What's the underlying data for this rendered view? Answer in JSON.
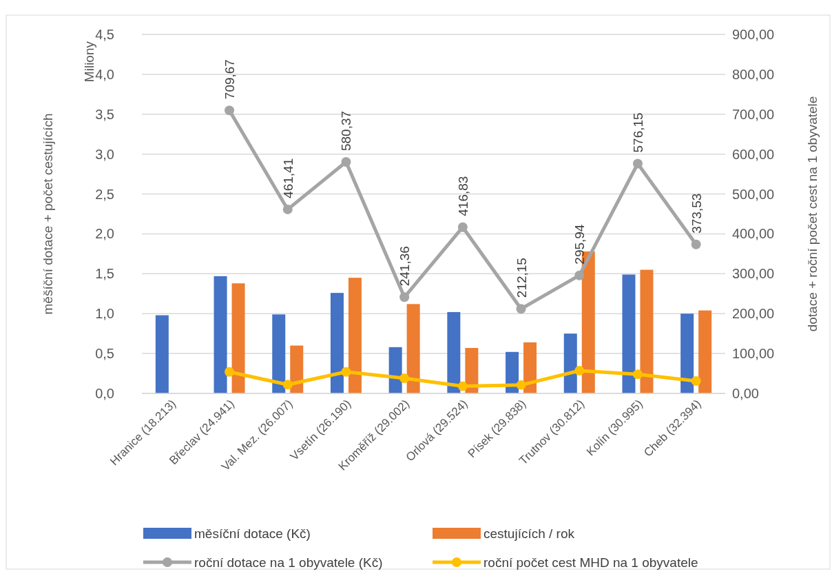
{
  "chart_data": {
    "type": "bar",
    "ylabel": "měšíční dotace + počet cestujících",
    "y2label": "dotace + roční počet cest na 1 obyvatele",
    "annotations": [
      "Miliony"
    ],
    "categories": [
      "Hranice (18.213)",
      "Břeclav (24.941)",
      "Val. Mez. (26.007)",
      "Vsetín (26.190)",
      "Kroměříž (29.002)",
      "Orlová (29.524)",
      "Písek (29.838)",
      "Trutnov (30.812)",
      "Kolín (30.995)",
      "Cheb (32.394)"
    ],
    "ylim": [
      0,
      4.5
    ],
    "yticks": [
      {
        "value": 0,
        "label": "0,0"
      },
      {
        "value": 0.5,
        "label": "0,5"
      },
      {
        "value": 1,
        "label": "1,0"
      },
      {
        "value": 1.5,
        "label": "1,5"
      },
      {
        "value": 2,
        "label": "2,0"
      },
      {
        "value": 2.5,
        "label": "2,5"
      },
      {
        "value": 3,
        "label": "3,0"
      },
      {
        "value": 3.5,
        "label": "3,5"
      },
      {
        "value": 4,
        "label": "4,0"
      },
      {
        "value": 4.5,
        "label": "4,5"
      }
    ],
    "y2lim": [
      0,
      900
    ],
    "y2ticks": [
      {
        "value": 0,
        "label": "0,00"
      },
      {
        "value": 100,
        "label": "100,00"
      },
      {
        "value": 200,
        "label": "200,00"
      },
      {
        "value": 300,
        "label": "300,00"
      },
      {
        "value": 400,
        "label": "400,00"
      },
      {
        "value": 500,
        "label": "500,00"
      },
      {
        "value": 600,
        "label": "600,00"
      },
      {
        "value": 700,
        "label": "700,00"
      },
      {
        "value": 800,
        "label": "800,00"
      },
      {
        "value": 900,
        "label": "900,00"
      }
    ],
    "grid": "y",
    "legend": "bottom",
    "marker": "circle",
    "line_style": "solid",
    "series": [
      {
        "name": "měsíční dotace (Kč)",
        "color": "#4472c4",
        "values": [
          0.98,
          1.47,
          0.99,
          1.26,
          0.58,
          1.02,
          0.52,
          0.75,
          1.49,
          1.0
        ]
      },
      {
        "name": "cestujících / rok",
        "color": "#ed7d31",
        "values": [
          null,
          1.38,
          0.6,
          1.45,
          1.12,
          0.57,
          0.64,
          1.78,
          1.55,
          1.04
        ]
      },
      {
        "name": "roční dotace na 1 obyvatele (Kč)",
        "type": "line",
        "axis": "y2",
        "color": "#a5a5a5",
        "values": [
          null,
          709.67,
          461.41,
          580.37,
          241.36,
          416.83,
          212.15,
          295.94,
          576.15,
          373.53
        ],
        "value_labels": [
          null,
          "709,67",
          "461,41",
          "580,37",
          "241,36",
          "416,83",
          "212,15",
          "295,94",
          "576,15",
          "373,53"
        ]
      },
      {
        "name": "roční počet cest MHD na 1 obyvatele",
        "type": "line",
        "axis": "y2",
        "color": "#ffc000",
        "values": [
          null,
          54,
          22,
          54,
          38,
          18,
          21,
          57,
          48,
          31
        ]
      }
    ]
  }
}
